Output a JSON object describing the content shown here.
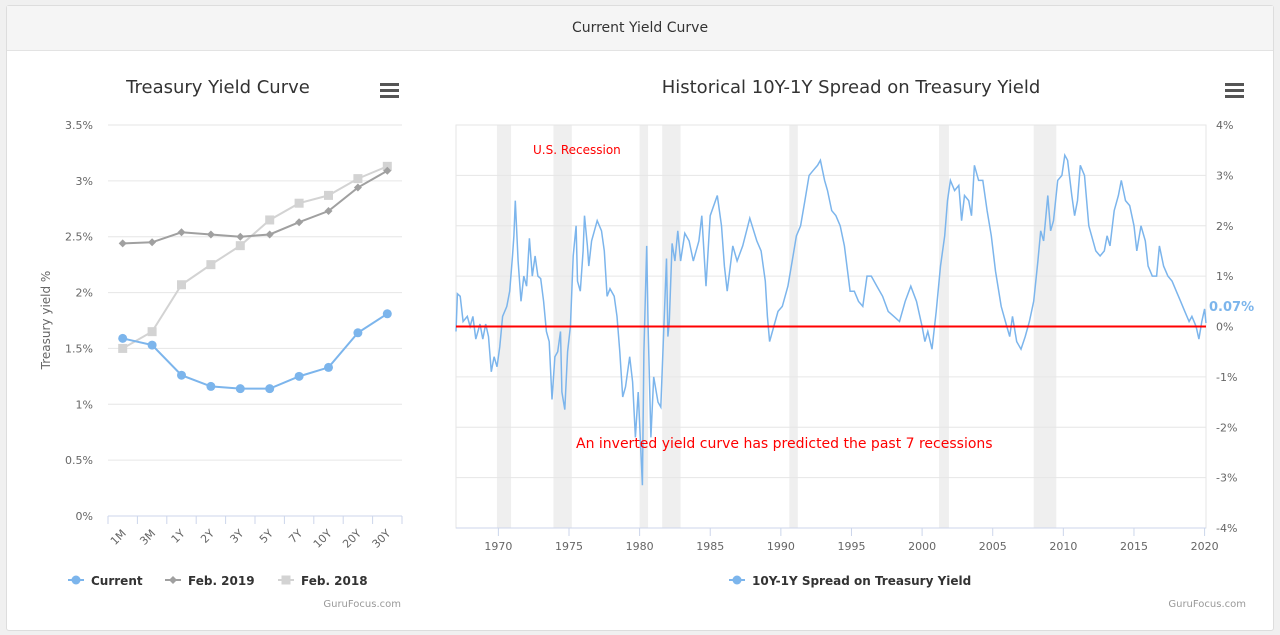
{
  "header": {
    "title": "Current Yield Curve"
  },
  "credit": "GuruFocus.com",
  "chart_data": [
    {
      "type": "line",
      "title": "Treasury Yield Curve",
      "ylabel": "Treasury yield %",
      "ylim": [
        0,
        3.5
      ],
      "yticks": [
        "0%",
        "0.5%",
        "1%",
        "1.5%",
        "2%",
        "2.5%",
        "3%",
        "3.5%"
      ],
      "categories": [
        "1M",
        "3M",
        "1Y",
        "2Y",
        "3Y",
        "5Y",
        "7Y",
        "10Y",
        "20Y",
        "30Y"
      ],
      "series": [
        {
          "name": "Current",
          "color": "#7cb5ec",
          "marker": "circle",
          "values": [
            1.59,
            1.53,
            1.26,
            1.16,
            1.14,
            1.14,
            1.25,
            1.33,
            1.64,
            1.81
          ]
        },
        {
          "name": "Feb. 2019",
          "color": "#a0a0a0",
          "marker": "diamond",
          "values": [
            2.44,
            2.45,
            2.54,
            2.52,
            2.5,
            2.52,
            2.63,
            2.73,
            2.94,
            3.09
          ]
        },
        {
          "name": "Feb. 2018",
          "color": "#d3d3d3",
          "marker": "square",
          "values": [
            1.5,
            1.65,
            2.07,
            2.25,
            2.42,
            2.65,
            2.8,
            2.87,
            3.02,
            3.13
          ]
        }
      ],
      "legend": "bottom"
    },
    {
      "type": "line",
      "title": "Historical 10Y-1Y Spread on Treasury Yield",
      "xlim": [
        1967,
        2020.1
      ],
      "ylim": [
        -4,
        4
      ],
      "xticks": [
        "1970",
        "1975",
        "1980",
        "1985",
        "1990",
        "1995",
        "2000",
        "2005",
        "2010",
        "2015",
        "2020"
      ],
      "yticks": [
        "-4%",
        "-3%",
        "-2%",
        "-1%",
        "0%",
        "1%",
        "2%",
        "3%",
        "4%"
      ],
      "last_value_label": "0.07%",
      "recession_label": "U.S. Recession",
      "annotation": "An inverted yield curve has predicted the past 7 recessions",
      "recessions": [
        [
          1969.9,
          1970.9
        ],
        [
          1973.9,
          1975.2
        ],
        [
          1980.0,
          1980.6
        ],
        [
          1981.6,
          1982.9
        ],
        [
          1990.6,
          1991.2
        ],
        [
          2001.2,
          2001.9
        ],
        [
          2007.9,
          2009.5
        ]
      ],
      "series": [
        {
          "name": "10Y-1Y Spread on Treasury Yield",
          "color": "#7cb5ec",
          "points": [
            [
              1967,
              -0.1
            ],
            [
              1967.1,
              0.65
            ],
            [
              1967.3,
              0.6
            ],
            [
              1967.5,
              0.1
            ],
            [
              1967.8,
              0.2
            ],
            [
              1968,
              0
            ],
            [
              1968.2,
              0.2
            ],
            [
              1968.4,
              -0.25
            ],
            [
              1968.7,
              0.05
            ],
            [
              1968.9,
              -0.25
            ],
            [
              1969.1,
              0.05
            ],
            [
              1969.3,
              -0.2
            ],
            [
              1969.5,
              -0.9
            ],
            [
              1969.7,
              -0.6
            ],
            [
              1969.9,
              -0.8
            ],
            [
              1970.1,
              -0.4
            ],
            [
              1970.3,
              0.2
            ],
            [
              1970.6,
              0.4
            ],
            [
              1970.8,
              0.7
            ],
            [
              1971,
              1.4
            ],
            [
              1971.1,
              1.8
            ],
            [
              1971.2,
              2.5
            ],
            [
              1971.4,
              1.3
            ],
            [
              1971.6,
              0.5
            ],
            [
              1971.8,
              1.0
            ],
            [
              1972,
              0.8
            ],
            [
              1972.2,
              1.75
            ],
            [
              1972.4,
              1.0
            ],
            [
              1972.6,
              1.4
            ],
            [
              1972.8,
              1.0
            ],
            [
              1973,
              0.95
            ],
            [
              1973.2,
              0.5
            ],
            [
              1973.4,
              -0.1
            ],
            [
              1973.6,
              -0.3
            ],
            [
              1973.8,
              -1.45
            ],
            [
              1974,
              -0.6
            ],
            [
              1974.2,
              -0.5
            ],
            [
              1974.4,
              -0.1
            ],
            [
              1974.5,
              -1.3
            ],
            [
              1974.7,
              -1.65
            ],
            [
              1974.9,
              -0.5
            ],
            [
              1975.1,
              0
            ],
            [
              1975.3,
              1.4
            ],
            [
              1975.5,
              2.0
            ],
            [
              1975.6,
              0.9
            ],
            [
              1975.8,
              0.7
            ],
            [
              1976,
              1.5
            ],
            [
              1976.1,
              2.2
            ],
            [
              1976.3,
              1.6
            ],
            [
              1976.4,
              1.2
            ],
            [
              1976.6,
              1.7
            ],
            [
              1976.8,
              1.9
            ],
            [
              1977,
              2.1
            ],
            [
              1977.3,
              1.9
            ],
            [
              1977.5,
              1.5
            ],
            [
              1977.7,
              0.6
            ],
            [
              1977.9,
              0.75
            ],
            [
              1978.2,
              0.6
            ],
            [
              1978.4,
              0.2
            ],
            [
              1978.6,
              -0.5
            ],
            [
              1978.8,
              -1.4
            ],
            [
              1979,
              -1.2
            ],
            [
              1979.3,
              -0.6
            ],
            [
              1979.5,
              -1.1
            ],
            [
              1979.7,
              -2.2
            ],
            [
              1979.9,
              -1.3
            ],
            [
              1980.2,
              -3.15
            ],
            [
              1980.3,
              -0.5
            ],
            [
              1980.5,
              1.6
            ],
            [
              1980.6,
              0
            ],
            [
              1980.8,
              -2.2
            ],
            [
              1981,
              -1.0
            ],
            [
              1981.3,
              -1.5
            ],
            [
              1981.5,
              -1.6
            ],
            [
              1981.9,
              1.35
            ],
            [
              1982,
              -0.2
            ],
            [
              1982.1,
              0.1
            ],
            [
              1982.3,
              1.65
            ],
            [
              1982.5,
              1.3
            ],
            [
              1982.7,
              1.9
            ],
            [
              1982.9,
              1.3
            ],
            [
              1983.2,
              1.85
            ],
            [
              1983.5,
              1.7
            ],
            [
              1983.8,
              1.3
            ],
            [
              1984.2,
              1.7
            ],
            [
              1984.4,
              2.2
            ],
            [
              1984.7,
              0.8
            ],
            [
              1985,
              2.2
            ],
            [
              1985.5,
              2.6
            ],
            [
              1985.8,
              2.0
            ],
            [
              1986,
              1.2
            ],
            [
              1986.2,
              0.7
            ],
            [
              1986.6,
              1.6
            ],
            [
              1986.9,
              1.3
            ],
            [
              1987.3,
              1.6
            ],
            [
              1987.8,
              2.15
            ],
            [
              1988.3,
              1.7
            ],
            [
              1988.6,
              1.5
            ],
            [
              1988.9,
              0.9
            ],
            [
              1989.05,
              0.2
            ],
            [
              1989.2,
              -0.3
            ],
            [
              1989.5,
              0
            ],
            [
              1989.8,
              0.3
            ],
            [
              1990.1,
              0.4
            ],
            [
              1990.5,
              0.8
            ],
            [
              1990.8,
              1.3
            ],
            [
              1991.1,
              1.8
            ],
            [
              1991.4,
              2.0
            ],
            [
              1991.7,
              2.5
            ],
            [
              1992,
              3.0
            ],
            [
              1992.3,
              3.1
            ],
            [
              1992.6,
              3.2
            ],
            [
              1992.8,
              3.3
            ],
            [
              1993.1,
              2.9
            ],
            [
              1993.3,
              2.7
            ],
            [
              1993.6,
              2.3
            ],
            [
              1993.9,
              2.2
            ],
            [
              1994.2,
              2.0
            ],
            [
              1994.5,
              1.6
            ],
            [
              1994.9,
              0.7
            ],
            [
              1995.2,
              0.7
            ],
            [
              1995.5,
              0.5
            ],
            [
              1995.8,
              0.4
            ],
            [
              1996.1,
              1.0
            ],
            [
              1996.4,
              1.0
            ],
            [
              1996.8,
              0.8
            ],
            [
              1997.2,
              0.6
            ],
            [
              1997.6,
              0.3
            ],
            [
              1998,
              0.2
            ],
            [
              1998.4,
              0.1
            ],
            [
              1998.8,
              0.5
            ],
            [
              1999.2,
              0.8
            ],
            [
              1999.6,
              0.5
            ],
            [
              2000,
              0
            ],
            [
              2000.2,
              -0.3
            ],
            [
              2000.4,
              -0.1
            ],
            [
              2000.7,
              -0.45
            ],
            [
              2001,
              0.3
            ],
            [
              2001.3,
              1.2
            ],
            [
              2001.6,
              1.8
            ],
            [
              2001.8,
              2.5
            ],
            [
              2002,
              2.9
            ],
            [
              2002.3,
              2.7
            ],
            [
              2002.6,
              2.8
            ],
            [
              2002.8,
              2.1
            ],
            [
              2003,
              2.6
            ],
            [
              2003.3,
              2.5
            ],
            [
              2003.5,
              2.2
            ],
            [
              2003.7,
              3.2
            ],
            [
              2004,
              2.9
            ],
            [
              2004.3,
              2.9
            ],
            [
              2004.6,
              2.3
            ],
            [
              2004.9,
              1.8
            ],
            [
              2005.2,
              1.1
            ],
            [
              2005.6,
              0.4
            ],
            [
              2005.9,
              0.1
            ],
            [
              2006.2,
              -0.2
            ],
            [
              2006.4,
              0.2
            ],
            [
              2006.7,
              -0.3
            ],
            [
              2007,
              -0.45
            ],
            [
              2007.3,
              -0.2
            ],
            [
              2007.6,
              0.1
            ],
            [
              2007.9,
              0.5
            ],
            [
              2008.2,
              1.3
            ],
            [
              2008.4,
              1.9
            ],
            [
              2008.6,
              1.7
            ],
            [
              2008.9,
              2.6
            ],
            [
              2009.1,
              1.9
            ],
            [
              2009.3,
              2.1
            ],
            [
              2009.6,
              2.9
            ],
            [
              2009.9,
              3.0
            ],
            [
              2010.1,
              3.4
            ],
            [
              2010.3,
              3.3
            ],
            [
              2010.6,
              2.6
            ],
            [
              2010.8,
              2.2
            ],
            [
              2011,
              2.5
            ],
            [
              2011.2,
              3.2
            ],
            [
              2011.5,
              3.0
            ],
            [
              2011.8,
              2.0
            ],
            [
              2012,
              1.8
            ],
            [
              2012.3,
              1.5
            ],
            [
              2012.6,
              1.4
            ],
            [
              2012.9,
              1.5
            ],
            [
              2013.1,
              1.8
            ],
            [
              2013.3,
              1.6
            ],
            [
              2013.6,
              2.3
            ],
            [
              2013.9,
              2.6
            ],
            [
              2014.1,
              2.9
            ],
            [
              2014.4,
              2.5
            ],
            [
              2014.7,
              2.4
            ],
            [
              2015,
              2.0
            ],
            [
              2015.2,
              1.5
            ],
            [
              2015.5,
              2.0
            ],
            [
              2015.8,
              1.7
            ],
            [
              2016,
              1.2
            ],
            [
              2016.3,
              1.0
            ],
            [
              2016.6,
              1.0
            ],
            [
              2016.8,
              1.6
            ],
            [
              2017.1,
              1.2
            ],
            [
              2017.4,
              1.0
            ],
            [
              2017.7,
              0.9
            ],
            [
              2018,
              0.7
            ],
            [
              2018.3,
              0.5
            ],
            [
              2018.6,
              0.3
            ],
            [
              2018.9,
              0.1
            ],
            [
              2019.1,
              0.2
            ],
            [
              2019.4,
              0
            ],
            [
              2019.6,
              -0.25
            ],
            [
              2019.8,
              0.1
            ],
            [
              2020,
              0.35
            ],
            [
              2020.1,
              0.07
            ]
          ]
        }
      ],
      "legend": "bottom"
    }
  ]
}
